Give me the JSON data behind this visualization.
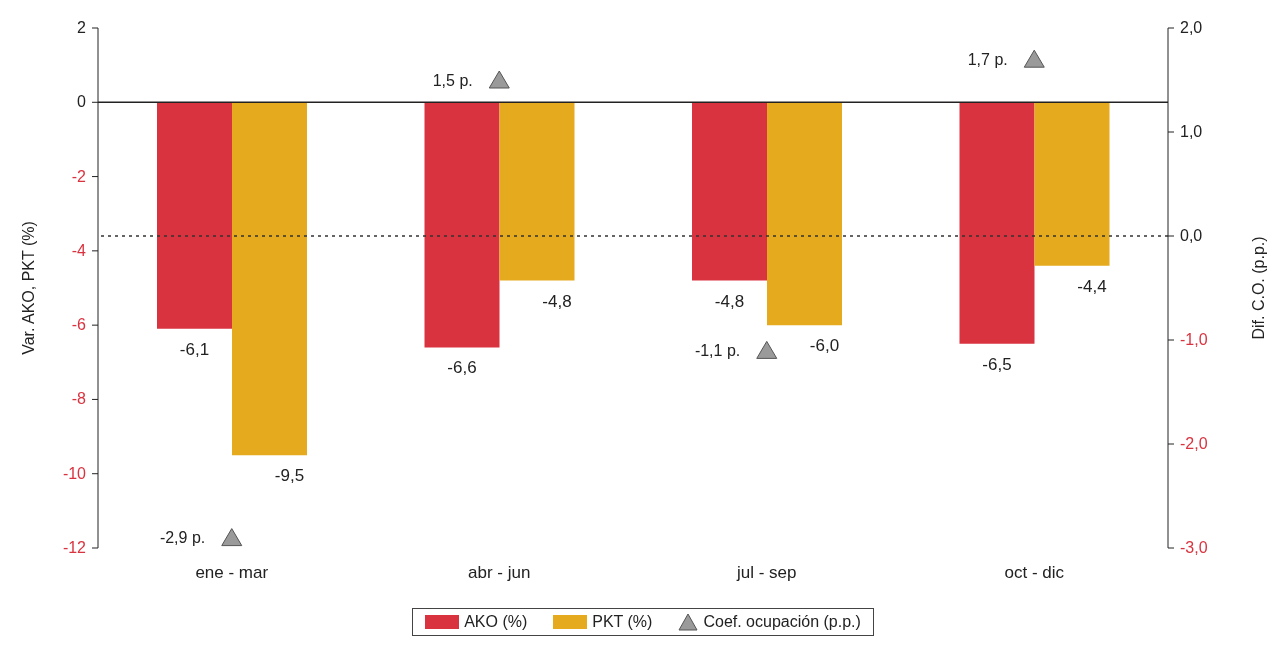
{
  "chart_data": {
    "type": "bar",
    "categories": [
      "ene - mar",
      "abr - jun",
      "jul - sep",
      "oct - dic"
    ],
    "ylabel": "Var. AKO, PKT (%)",
    "y2label": "Dif. C.O. (p.p.)",
    "series": [
      {
        "name": "AKO (%)",
        "color": "#d9333f",
        "values": [
          -6.1,
          -6.6,
          -4.8,
          -6.5
        ],
        "value_labels": [
          "-6,1",
          "-6,6",
          "-4,8",
          "-6,5"
        ]
      },
      {
        "name": "PKT (%)",
        "color": "#e6aa1e",
        "values": [
          -9.5,
          -4.8,
          -6.0,
          -4.4
        ],
        "value_labels": [
          "-9,5",
          "-4,8",
          "-6,0",
          "-4,4"
        ]
      },
      {
        "name": "Coef. ocupación (p.p.)",
        "type": "scatter",
        "axis": "y2",
        "marker": "triangle",
        "color": "#9a9a9a",
        "values": [
          -2.9,
          1.5,
          -1.1,
          1.7
        ],
        "value_labels": [
          "-2,9 p.",
          "1,5 p.",
          "-1,1 p.",
          "1,7 p."
        ]
      }
    ],
    "ylim": [
      -12,
      2
    ],
    "yticks": [
      -12,
      -10,
      -8,
      -6,
      -4,
      -2,
      0,
      2
    ],
    "y2lim": [
      -3,
      2
    ],
    "y2ticks": [
      {
        "value": -3,
        "label": "-3,0"
      },
      {
        "value": -2,
        "label": "-2,0"
      },
      {
        "value": -1,
        "label": "-1,0"
      },
      {
        "value": 0,
        "label": "0,0"
      },
      {
        "value": 1,
        "label": "1,0"
      },
      {
        "value": 2,
        "label": "2,0"
      }
    ],
    "ref_lines": [
      {
        "axis": "y2",
        "value": 0,
        "color": "#333333",
        "line_style": "dotted"
      }
    ],
    "legend": "bottom"
  }
}
